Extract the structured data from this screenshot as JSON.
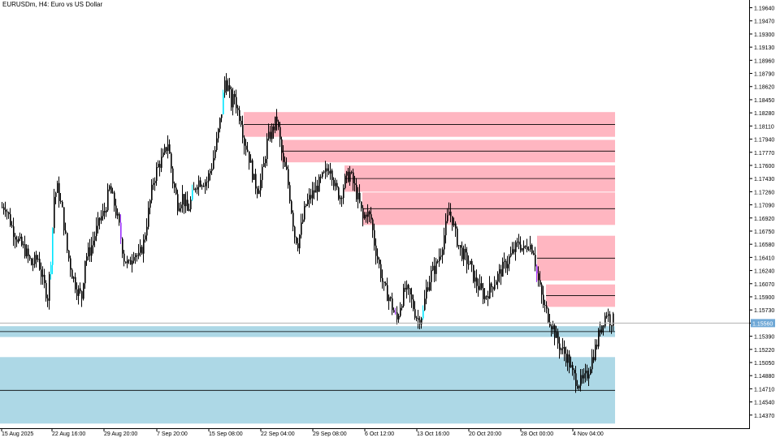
{
  "window": {
    "symbol_title": "EURUSDm, H4:  Euro vs US Dollar"
  },
  "colors": {
    "background": "#ffffff",
    "candle_body": "#000000",
    "supply_zone": "#ffb6c1",
    "demand_zone": "#add8e6",
    "highlight_bull": "#00e5ff",
    "highlight_bear": "#9b30ff",
    "current_price_line": "#b0b0b0",
    "current_price_label_bg": "#6fa8d6"
  },
  "chart_data": {
    "type": "candlestick",
    "symbol": "EURUSDm",
    "timeframe": "H4",
    "description": "Euro vs US Dollar",
    "ylim": [
      1.142,
      1.1974
    ],
    "y_ticks": [
      "1.19640",
      "1.19470",
      "1.19300",
      "1.19130",
      "1.18960",
      "1.18790",
      "1.18620",
      "1.18450",
      "1.18280",
      "1.18110",
      "1.17940",
      "1.17770",
      "1.17600",
      "1.17430",
      "1.17260",
      "1.17090",
      "1.16920",
      "1.16750",
      "1.16580",
      "1.16410",
      "1.16240",
      "1.16070",
      "1.15900",
      "1.15730",
      "1.15560",
      "1.15390",
      "1.15220",
      "1.15050",
      "1.14880",
      "1.14710",
      "1.14540",
      "1.14370"
    ],
    "x_ticks": [
      "15 Aug 2025",
      "22 Aug 16:00",
      "29 Aug 20:00",
      "7 Sep 20:00",
      "15 Sep 08:00",
      "22 Sep 04:00",
      "29 Sep 08:00",
      "6 Oct 12:00",
      "13 Oct 16:00",
      "20 Oct 20:00",
      "28 Oct 00:00",
      "4 Nov 04:00"
    ],
    "current_price": 1.1556,
    "current_price_label": "1.15560",
    "price_path": [
      [
        0,
        1.1705
      ],
      [
        6,
        1.1708
      ],
      [
        14,
        1.168
      ],
      [
        22,
        1.1662
      ],
      [
        30,
        1.165
      ],
      [
        38,
        1.1632
      ],
      [
        46,
        1.164
      ],
      [
        52,
        1.161
      ],
      [
        58,
        1.159
      ],
      [
        62,
        1.164
      ],
      [
        66,
        1.172
      ],
      [
        70,
        1.173
      ],
      [
        76,
        1.17
      ],
      [
        82,
        1.165
      ],
      [
        88,
        1.162
      ],
      [
        94,
        1.16
      ],
      [
        100,
        1.159
      ],
      [
        104,
        1.164
      ],
      [
        110,
        1.165
      ],
      [
        116,
        1.167
      ],
      [
        122,
        1.169
      ],
      [
        128,
        1.17
      ],
      [
        134,
        1.173
      ],
      [
        140,
        1.171
      ],
      [
        146,
        1.168
      ],
      [
        152,
        1.164
      ],
      [
        158,
        1.163
      ],
      [
        164,
        1.165
      ],
      [
        170,
        1.164
      ],
      [
        176,
        1.166
      ],
      [
        182,
        1.17
      ],
      [
        188,
        1.174
      ],
      [
        194,
        1.176
      ],
      [
        200,
        1.177
      ],
      [
        206,
        1.179
      ],
      [
        212,
        1.174
      ],
      [
        218,
        1.171
      ],
      [
        224,
        1.172
      ],
      [
        230,
        1.17
      ],
      [
        236,
        1.172
      ],
      [
        242,
        1.174
      ],
      [
        248,
        1.174
      ],
      [
        254,
        1.174
      ],
      [
        260,
        1.176
      ],
      [
        266,
        1.179
      ],
      [
        272,
        1.183
      ],
      [
        276,
        1.187
      ],
      [
        280,
        1.186
      ],
      [
        284,
        1.184
      ],
      [
        288,
        1.185
      ],
      [
        292,
        1.183
      ],
      [
        296,
        1.182
      ],
      [
        300,
        1.179
      ],
      [
        304,
        1.178
      ],
      [
        308,
        1.176
      ],
      [
        312,
        1.174
      ],
      [
        316,
        1.173
      ],
      [
        320,
        1.174
      ],
      [
        324,
        1.176
      ],
      [
        328,
        1.179
      ],
      [
        332,
        1.18
      ],
      [
        336,
        1.181
      ],
      [
        340,
        1.182
      ],
      [
        344,
        1.179
      ],
      [
        348,
        1.176
      ],
      [
        352,
        1.175
      ],
      [
        356,
        1.172
      ],
      [
        362,
        1.167
      ],
      [
        366,
        1.166
      ],
      [
        370,
        1.168
      ],
      [
        376,
        1.171
      ],
      [
        382,
        1.172
      ],
      [
        388,
        1.173
      ],
      [
        394,
        1.174
      ],
      [
        400,
        1.175
      ],
      [
        406,
        1.176
      ],
      [
        412,
        1.173
      ],
      [
        418,
        1.172
      ],
      [
        424,
        1.174
      ],
      [
        430,
        1.175
      ],
      [
        436,
        1.173
      ],
      [
        442,
        1.171
      ],
      [
        446,
        1.169
      ],
      [
        450,
        1.17
      ],
      [
        456,
        1.169
      ],
      [
        460,
        1.166
      ],
      [
        466,
        1.163
      ],
      [
        472,
        1.16
      ],
      [
        478,
        1.159
      ],
      [
        484,
        1.157
      ],
      [
        488,
        1.156
      ],
      [
        492,
        1.158
      ],
      [
        498,
        1.16
      ],
      [
        504,
        1.159
      ],
      [
        510,
        1.157
      ],
      [
        514,
        1.156
      ],
      [
        520,
        1.157
      ],
      [
        524,
        1.16
      ],
      [
        530,
        1.162
      ],
      [
        536,
        1.163
      ],
      [
        542,
        1.165
      ],
      [
        548,
        1.168
      ],
      [
        552,
        1.17
      ],
      [
        556,
        1.169
      ],
      [
        560,
        1.167
      ],
      [
        566,
        1.165
      ],
      [
        572,
        1.164
      ],
      [
        578,
        1.163
      ],
      [
        584,
        1.161
      ],
      [
        590,
        1.16
      ],
      [
        596,
        1.159
      ],
      [
        602,
        1.16
      ],
      [
        608,
        1.161
      ],
      [
        614,
        1.162
      ],
      [
        620,
        1.163
      ],
      [
        626,
        1.164
      ],
      [
        632,
        1.165
      ],
      [
        638,
        1.166
      ],
      [
        644,
        1.165
      ],
      [
        650,
        1.166
      ],
      [
        656,
        1.165
      ],
      [
        660,
        1.162
      ],
      [
        664,
        1.16
      ],
      [
        668,
        1.158
      ],
      [
        672,
        1.157
      ],
      [
        676,
        1.156
      ],
      [
        680,
        1.155
      ],
      [
        686,
        1.153
      ],
      [
        692,
        1.152
      ],
      [
        698,
        1.151
      ],
      [
        704,
        1.149
      ],
      [
        710,
        1.148
      ],
      [
        716,
        1.148
      ],
      [
        722,
        1.149
      ],
      [
        728,
        1.151
      ],
      [
        734,
        1.153
      ],
      [
        738,
        1.155
      ],
      [
        742,
        1.156
      ],
      [
        746,
        1.157
      ],
      [
        750,
        1.156
      ],
      [
        754,
        1.156
      ]
    ],
    "zones": [
      {
        "kind": "supply",
        "top": 1.1829,
        "bottom": 1.1797,
        "mid": 1.1813
      },
      {
        "kind": "supply",
        "top": 1.1793,
        "bottom": 1.1764,
        "mid": 1.17785
      },
      {
        "kind": "supply",
        "top": 1.176,
        "bottom": 1.1726,
        "mid": 1.1743
      },
      {
        "kind": "supply",
        "top": 1.1725,
        "bottom": 1.1683,
        "mid": 1.1704
      },
      {
        "kind": "supply",
        "top": 1.1669,
        "bottom": 1.1611,
        "mid": 1.164
      },
      {
        "kind": "supply",
        "top": 1.1606,
        "bottom": 1.1577,
        "mid": 1.15915
      },
      {
        "kind": "demand",
        "top": 1.1552,
        "bottom": 1.1538,
        "mid": 1.1545
      },
      {
        "kind": "demand",
        "top": 1.1512,
        "bottom": 1.1426,
        "mid": 1.1469
      }
    ],
    "grid": false
  }
}
